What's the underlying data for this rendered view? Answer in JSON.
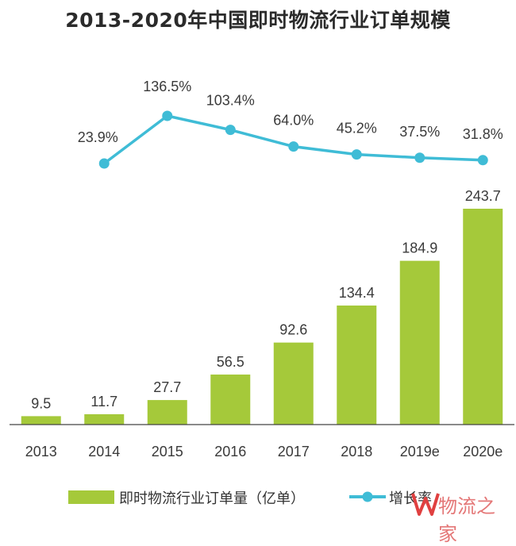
{
  "chart_data": {
    "type": "bar",
    "title": "2013-2020年中国即时物流行业订单规模",
    "categories": [
      "2013",
      "2014",
      "2015",
      "2016",
      "2017",
      "2018",
      "2019e",
      "2020e"
    ],
    "series": [
      {
        "name": "即时物流行业订单量（亿单）",
        "type": "bar",
        "color": "#a5c93a",
        "values": [
          9.5,
          11.7,
          27.7,
          56.5,
          92.6,
          134.4,
          184.9,
          243.7
        ],
        "labels": [
          "9.5",
          "11.7",
          "27.7",
          "56.5",
          "92.6",
          "134.4",
          "184.9",
          "243.7"
        ]
      },
      {
        "name": "增长率",
        "type": "line",
        "color": "#3fbcd6",
        "x": [
          "2014",
          "2015",
          "2016",
          "2017",
          "2018",
          "2019e",
          "2020e"
        ],
        "values": [
          23.9,
          136.5,
          103.4,
          64.0,
          45.2,
          37.5,
          31.8
        ],
        "labels": [
          "23.9%",
          "136.5%",
          "103.4%",
          "64.0%",
          "45.2%",
          "37.5%",
          "31.8%"
        ]
      }
    ],
    "legend_position": "bottom",
    "grid": false
  },
  "watermark": {
    "text": "物流之家"
  }
}
